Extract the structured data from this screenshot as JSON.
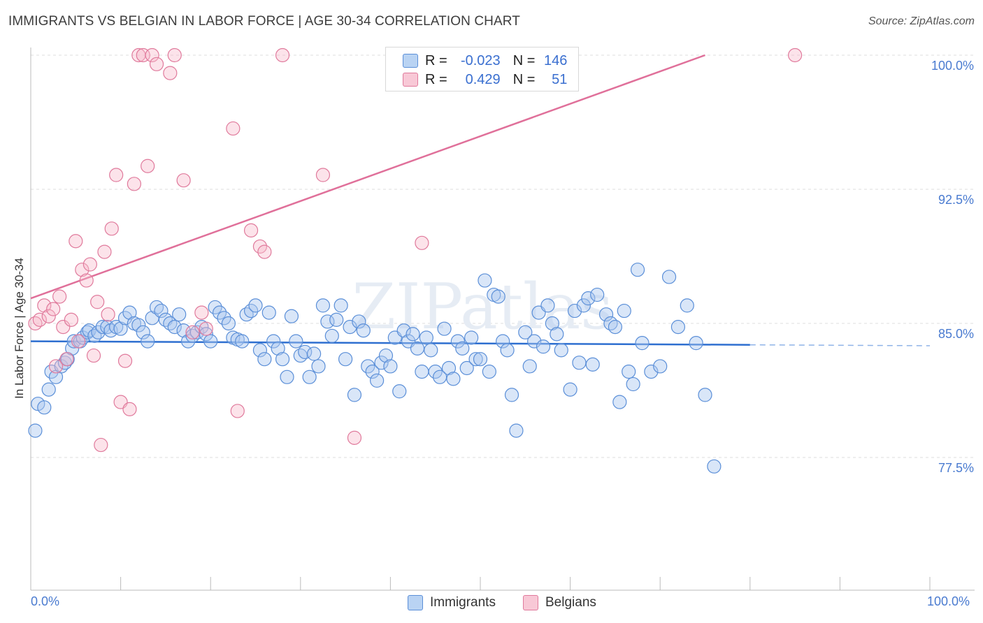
{
  "title": "IMMIGRANTS VS BELGIAN IN LABOR FORCE | AGE 30-34 CORRELATION CHART",
  "source": "Source: ZipAtlas.com",
  "watermark": "ZIPatlas",
  "legend": {
    "rows": [
      {
        "r_label": "R =",
        "r_value": "-0.023",
        "n_label": "N =",
        "n_value": "146",
        "color": "#a8c8f0",
        "border": "#5b8fd8"
      },
      {
        "r_label": "R =",
        "r_value": "0.429",
        "n_label": "N =",
        "n_value": "51",
        "color": "#f7b8cb",
        "border": "#e07a9c"
      }
    ],
    "bottom": [
      {
        "label": "Immigrants",
        "color": "#b9d3f3",
        "border": "#5b8fd8"
      },
      {
        "label": "Belgians",
        "color": "#f8c8d6",
        "border": "#e07a9c"
      }
    ]
  },
  "chart_data": {
    "type": "scatter",
    "title": "IMMIGRANTS VS BELGIAN IN LABOR FORCE | AGE 30-34 CORRELATION CHART",
    "xlabel": "",
    "ylabel": "In Labor Force | Age 30-34",
    "xlim": [
      0,
      100
    ],
    "ylim": [
      70,
      101
    ],
    "x_tick_labels": [
      "0.0%",
      "100.0%"
    ],
    "y_ticks": [
      77.5,
      85.0,
      92.5,
      100.0
    ],
    "y_tick_labels": [
      "77.5%",
      "85.0%",
      "92.5%",
      "100.0%"
    ],
    "grid": true,
    "legend_position": "top-center",
    "series": [
      {
        "name": "Immigrants",
        "color": "#5b8fd8",
        "fill": "rgba(170,200,240,0.45)",
        "trend": {
          "x": [
            0,
            80
          ],
          "y": [
            84.0,
            83.8
          ],
          "dashed_to": 100
        },
        "points": [
          [
            0.5,
            79.0
          ],
          [
            0.8,
            80.5
          ],
          [
            1.5,
            80.3
          ],
          [
            2.0,
            81.3
          ],
          [
            2.3,
            82.3
          ],
          [
            2.8,
            82.0
          ],
          [
            3.4,
            82.6
          ],
          [
            3.8,
            82.8
          ],
          [
            4.1,
            83.0
          ],
          [
            4.6,
            83.6
          ],
          [
            4.8,
            84.0
          ],
          [
            5.5,
            84.0
          ],
          [
            5.8,
            84.2
          ],
          [
            6.3,
            84.5
          ],
          [
            6.5,
            84.6
          ],
          [
            7.1,
            84.3
          ],
          [
            7.5,
            84.5
          ],
          [
            8.0,
            84.8
          ],
          [
            8.5,
            84.8
          ],
          [
            8.9,
            84.6
          ],
          [
            9.5,
            84.8
          ],
          [
            10.0,
            84.7
          ],
          [
            10.5,
            85.3
          ],
          [
            11.0,
            85.6
          ],
          [
            11.5,
            85.0
          ],
          [
            12.0,
            84.9
          ],
          [
            12.5,
            84.5
          ],
          [
            13.0,
            84.0
          ],
          [
            13.5,
            85.3
          ],
          [
            14.0,
            85.9
          ],
          [
            14.5,
            85.7
          ],
          [
            15.0,
            85.2
          ],
          [
            15.5,
            85.0
          ],
          [
            16.0,
            84.8
          ],
          [
            16.5,
            85.5
          ],
          [
            17.0,
            84.6
          ],
          [
            17.5,
            84.0
          ],
          [
            18.0,
            84.3
          ],
          [
            18.5,
            84.5
          ],
          [
            19.0,
            84.8
          ],
          [
            19.5,
            84.4
          ],
          [
            20.0,
            84.0
          ],
          [
            20.5,
            85.9
          ],
          [
            21.0,
            85.6
          ],
          [
            21.5,
            85.3
          ],
          [
            22.0,
            85.0
          ],
          [
            22.5,
            84.2
          ],
          [
            23.0,
            84.1
          ],
          [
            23.5,
            84.0
          ],
          [
            24.0,
            85.5
          ],
          [
            24.5,
            85.7
          ],
          [
            25.0,
            86.0
          ],
          [
            25.5,
            83.5
          ],
          [
            26.0,
            83.0
          ],
          [
            26.5,
            85.6
          ],
          [
            27.0,
            84.0
          ],
          [
            27.5,
            83.6
          ],
          [
            28.0,
            83.0
          ],
          [
            28.5,
            82.0
          ],
          [
            29.0,
            85.4
          ],
          [
            29.5,
            84.0
          ],
          [
            30.0,
            83.2
          ],
          [
            30.5,
            83.4
          ],
          [
            31.0,
            82.0
          ],
          [
            31.5,
            83.3
          ],
          [
            32.0,
            82.6
          ],
          [
            32.5,
            86.0
          ],
          [
            33.0,
            85.1
          ],
          [
            33.5,
            84.3
          ],
          [
            34.0,
            85.2
          ],
          [
            34.5,
            86.0
          ],
          [
            35.0,
            83.0
          ],
          [
            35.5,
            84.8
          ],
          [
            36.0,
            81.0
          ],
          [
            36.5,
            85.1
          ],
          [
            37.0,
            84.6
          ],
          [
            37.5,
            82.6
          ],
          [
            38.0,
            82.3
          ],
          [
            38.5,
            81.8
          ],
          [
            39.0,
            82.8
          ],
          [
            39.5,
            83.2
          ],
          [
            40.0,
            82.6
          ],
          [
            40.5,
            84.2
          ],
          [
            41.0,
            81.2
          ],
          [
            41.5,
            84.6
          ],
          [
            42.0,
            84.0
          ],
          [
            42.5,
            84.4
          ],
          [
            43.0,
            83.6
          ],
          [
            43.5,
            82.3
          ],
          [
            44.0,
            84.2
          ],
          [
            44.5,
            83.5
          ],
          [
            45.0,
            82.3
          ],
          [
            45.5,
            82.0
          ],
          [
            46.0,
            84.7
          ],
          [
            46.5,
            82.5
          ],
          [
            47.0,
            81.9
          ],
          [
            47.5,
            84.0
          ],
          [
            48.0,
            83.6
          ],
          [
            48.5,
            82.5
          ],
          [
            49.0,
            84.2
          ],
          [
            49.5,
            83.0
          ],
          [
            50.0,
            83.0
          ],
          [
            50.5,
            87.4
          ],
          [
            51.0,
            82.3
          ],
          [
            51.5,
            86.6
          ],
          [
            52.0,
            86.5
          ],
          [
            52.5,
            84.0
          ],
          [
            53.0,
            83.5
          ],
          [
            53.5,
            81.0
          ],
          [
            54.0,
            79.0
          ],
          [
            55.0,
            84.5
          ],
          [
            55.5,
            82.6
          ],
          [
            56.0,
            84.0
          ],
          [
            56.5,
            85.6
          ],
          [
            57.0,
            83.7
          ],
          [
            57.5,
            86.0
          ],
          [
            58.0,
            85.0
          ],
          [
            58.5,
            84.4
          ],
          [
            59.0,
            83.5
          ],
          [
            60.0,
            81.3
          ],
          [
            60.5,
            85.7
          ],
          [
            61.0,
            82.8
          ],
          [
            61.5,
            86.0
          ],
          [
            62.0,
            86.4
          ],
          [
            62.5,
            82.7
          ],
          [
            63.0,
            86.6
          ],
          [
            64.0,
            85.5
          ],
          [
            64.5,
            85.0
          ],
          [
            65.0,
            84.8
          ],
          [
            65.5,
            80.6
          ],
          [
            66.0,
            85.7
          ],
          [
            66.5,
            82.3
          ],
          [
            67.0,
            81.6
          ],
          [
            67.5,
            88.0
          ],
          [
            68.0,
            83.9
          ],
          [
            69.0,
            82.3
          ],
          [
            70.0,
            82.6
          ],
          [
            71.0,
            87.6
          ],
          [
            72.0,
            84.8
          ],
          [
            73.0,
            86.0
          ],
          [
            74.0,
            83.9
          ],
          [
            75.0,
            81.0
          ],
          [
            76.0,
            77.0
          ]
        ]
      },
      {
        "name": "Belgians",
        "color": "#e07a9c",
        "fill": "rgba(247,184,203,0.40)",
        "trend": {
          "x": [
            0,
            75
          ],
          "y": [
            86.4,
            100.0
          ]
        },
        "points": [
          [
            0.5,
            85.0
          ],
          [
            1.0,
            85.2
          ],
          [
            1.5,
            86.0
          ],
          [
            2.0,
            85.4
          ],
          [
            2.5,
            85.8
          ],
          [
            2.8,
            82.6
          ],
          [
            3.2,
            86.5
          ],
          [
            3.6,
            84.8
          ],
          [
            4.0,
            83.0
          ],
          [
            4.5,
            85.2
          ],
          [
            5.0,
            89.6
          ],
          [
            5.3,
            84.0
          ],
          [
            5.7,
            88.0
          ],
          [
            6.2,
            87.4
          ],
          [
            6.6,
            88.3
          ],
          [
            7.0,
            83.2
          ],
          [
            7.4,
            86.2
          ],
          [
            7.8,
            78.2
          ],
          [
            8.2,
            89.0
          ],
          [
            8.6,
            85.5
          ],
          [
            9.0,
            90.3
          ],
          [
            9.5,
            93.3
          ],
          [
            10.0,
            80.6
          ],
          [
            10.5,
            82.9
          ],
          [
            11.0,
            80.2
          ],
          [
            11.5,
            92.8
          ],
          [
            12.0,
            100.0
          ],
          [
            12.5,
            100.0
          ],
          [
            13.0,
            93.8
          ],
          [
            13.5,
            100.0
          ],
          [
            14.0,
            99.5
          ],
          [
            15.5,
            99.0
          ],
          [
            16.0,
            100.0
          ],
          [
            17.0,
            93.0
          ],
          [
            18.0,
            84.5
          ],
          [
            19.0,
            85.6
          ],
          [
            19.5,
            84.7
          ],
          [
            22.5,
            95.9
          ],
          [
            23.0,
            80.1
          ],
          [
            24.5,
            90.2
          ],
          [
            25.5,
            89.3
          ],
          [
            26.0,
            89.0
          ],
          [
            28.0,
            100.0
          ],
          [
            32.5,
            93.3
          ],
          [
            36.0,
            78.6
          ],
          [
            43.5,
            89.5
          ],
          [
            51.0,
            100.0
          ],
          [
            85.0,
            100.0
          ]
        ]
      }
    ]
  }
}
